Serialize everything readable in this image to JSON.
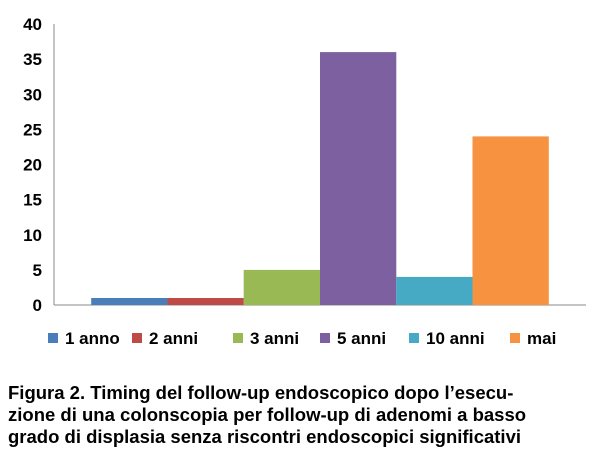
{
  "chart_data": {
    "type": "bar",
    "categories": [
      ""
    ],
    "series": [
      {
        "name": "1 anno",
        "values": [
          1
        ],
        "color": "#4a7ebb"
      },
      {
        "name": "2 anni",
        "values": [
          1
        ],
        "color": "#be4b48"
      },
      {
        "name": "3 anni",
        "values": [
          5
        ],
        "color": "#98b954"
      },
      {
        "name": "5 anni",
        "values": [
          36
        ],
        "color": "#7d60a0"
      },
      {
        "name": "10 anni",
        "values": [
          4
        ],
        "color": "#46aac5"
      },
      {
        "name": "mai",
        "values": [
          24
        ],
        "color": "#f69240"
      }
    ],
    "yticks": [
      "0",
      "5",
      "10",
      "15",
      "20",
      "25",
      "30",
      "35",
      "40"
    ],
    "ylim": [
      0,
      40
    ],
    "grid": false,
    "legend_position": "bottom"
  },
  "caption": {
    "lines": [
      "Figura 2. Timing del follow-up endoscopico dopo l’esecu-",
      "zione di una colonscopia per follow-up di adenomi a basso",
      "grado di displasia senza riscontri endoscopici significativi"
    ]
  }
}
